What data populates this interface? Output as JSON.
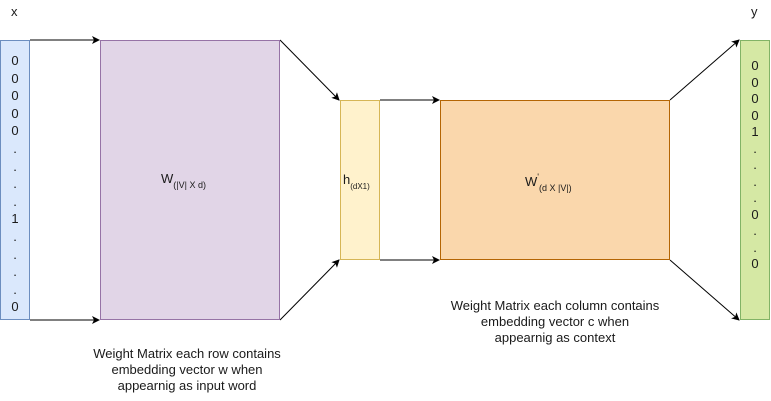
{
  "labels": {
    "x": "x",
    "y": "y"
  },
  "x_vector": [
    "0",
    "0",
    "0",
    "0",
    "0",
    ".",
    ".",
    ".",
    ".",
    "1",
    ".",
    ".",
    ".",
    ".",
    "0"
  ],
  "y_vector": [
    "0",
    "0",
    "0",
    "0",
    "1",
    ".",
    ".",
    ".",
    ".",
    "0",
    ".",
    ".",
    "0"
  ],
  "w_matrix": {
    "symbol": "W",
    "subscript": "(|V| X d)"
  },
  "hidden": {
    "symbol": "h",
    "subscript": "(dX1)"
  },
  "w_prime_matrix": {
    "symbol": "W",
    "prime": "'",
    "subscript": "(d X |V|)"
  },
  "captions": {
    "input_weights": [
      "Weight Matrix each row contains",
      "embedding vector w when",
      "appearnig as input word"
    ],
    "output_weights": [
      "Weight Matrix each column contains",
      "embedding vector c when",
      "appearnig as context"
    ]
  },
  "colors": {
    "x_vector_fill": "#dae8fc",
    "x_vector_border": "#6c8ebf",
    "w_fill": "#e1d5e7",
    "w_border": "#9673a6",
    "h_fill": "#fff2cc",
    "h_border": "#d6b656",
    "w_prime_fill": "#fad7ac",
    "w_prime_border": "#b46504",
    "y_vector_fill": "#d5e8a4",
    "y_vector_border": "#82b366"
  }
}
